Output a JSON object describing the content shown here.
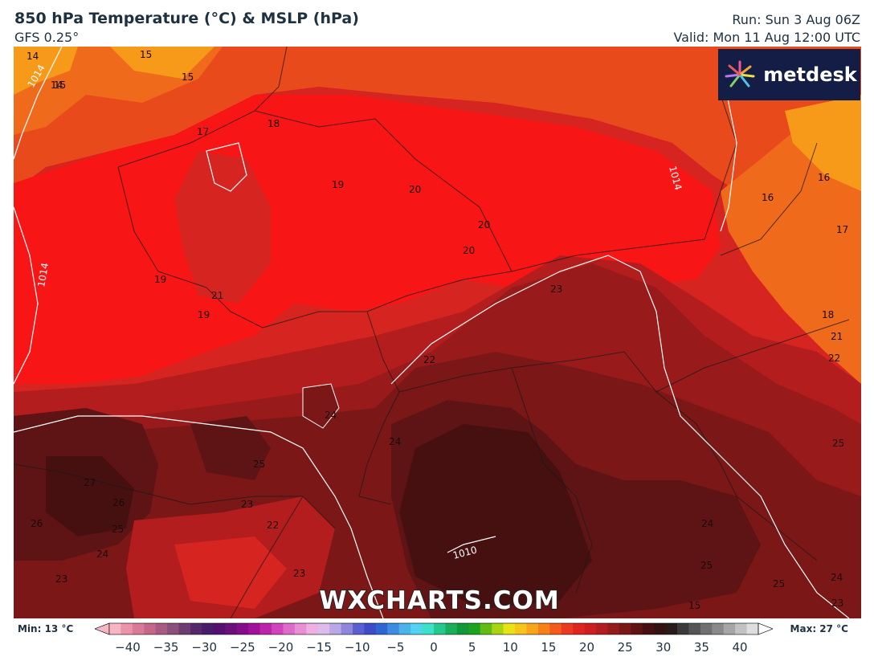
{
  "header": {
    "title": "850 hPa Temperature (°C) & MSLP (hPa)",
    "model": "GFS 0.25°",
    "run": "Run: Sun 3 Aug 06Z",
    "valid": "Valid: Mon 11 Aug 12:00 UTC"
  },
  "brand": {
    "logo_text": "metdesk",
    "logo_icon": "metdesk-spark-icon",
    "bg_color": "#131d45"
  },
  "watermark": "WXCHARTS.COM",
  "map_labels": {
    "temps": [
      "14",
      "15",
      "15",
      "14",
      "15",
      "17",
      "18",
      "19",
      "20",
      "20",
      "20",
      "19",
      "21",
      "19",
      "23",
      "22",
      "24",
      "24",
      "25",
      "27",
      "26",
      "26",
      "25",
      "24",
      "23",
      "23",
      "22",
      "23",
      "24",
      "25",
      "25",
      "25",
      "24",
      "23",
      "22",
      "21",
      "18",
      "17",
      "16",
      "16",
      "15"
    ],
    "isobars": [
      "1014",
      "1014",
      "1014",
      "1010"
    ]
  },
  "colorbar": {
    "min_label": "Min: 13 °C",
    "max_label": "Max: 27 °C",
    "ticks": [
      "−40",
      "−35",
      "−30",
      "−25",
      "−20",
      "−15",
      "−10",
      "−5",
      "0",
      "5",
      "10",
      "15",
      "20",
      "25",
      "30",
      "35",
      "40"
    ],
    "colors": [
      "#f7b6c4",
      "#eb93a8",
      "#d97b96",
      "#c4688a",
      "#a85a82",
      "#8c4f7c",
      "#6e3c6e",
      "#56286a",
      "#481b6b",
      "#55106f",
      "#6b0f7a",
      "#850d8a",
      "#a1129c",
      "#bb25ac",
      "#cf43bc",
      "#de6ac9",
      "#e88fd6",
      "#eeb0e1",
      "#dcbcea",
      "#b9a8e6",
      "#8f86dc",
      "#5c5fcf",
      "#3c4cc6",
      "#2f66d2",
      "#3c8ce0",
      "#4ab4ea",
      "#52d3ef",
      "#3ee0c8",
      "#25c98f",
      "#1aad5a",
      "#139838",
      "#1ea320",
      "#62bc13",
      "#a9d413",
      "#e9e315",
      "#f7c51a",
      "#f9a51a",
      "#f98018",
      "#f35a1b",
      "#ec3a1e",
      "#e02420",
      "#cc1f21",
      "#b21d1f",
      "#961b1c",
      "#7a1818",
      "#5e1414",
      "#461010",
      "#351212",
      "#2a1a1a",
      "#3a3a3a",
      "#555555",
      "#707070",
      "#8a8a8a",
      "#a6a6a6",
      "#c2c2c2",
      "#dedede"
    ]
  }
}
